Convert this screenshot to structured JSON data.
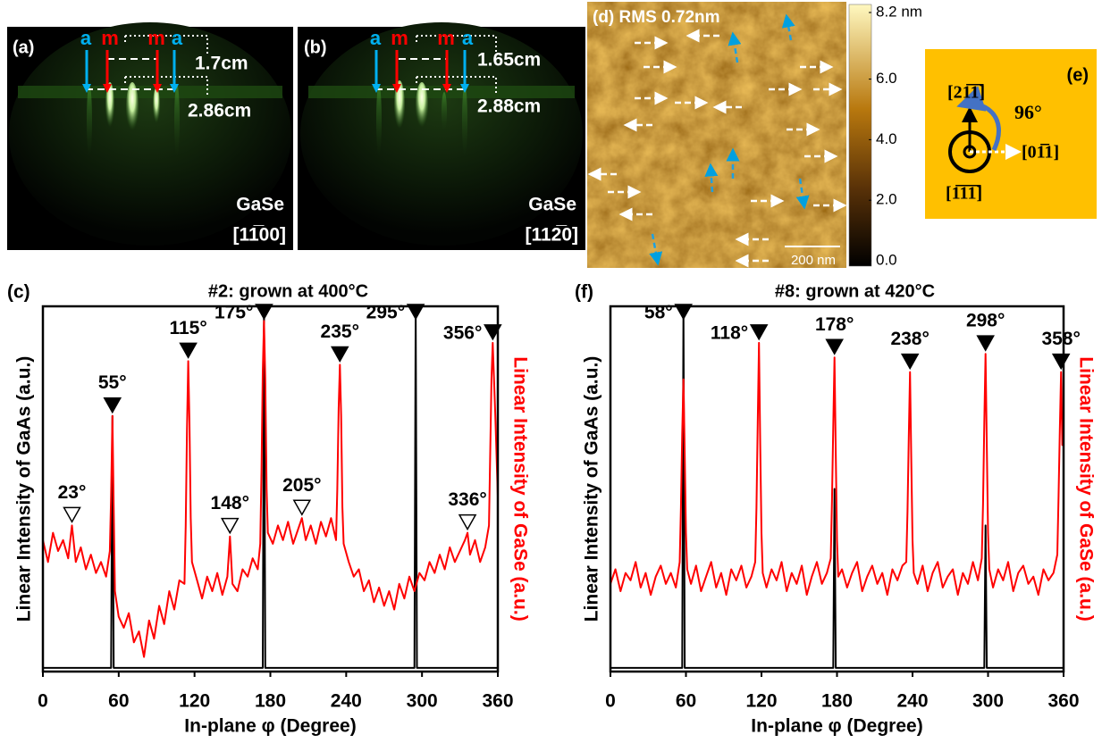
{
  "panel_a": {
    "label": "(a)",
    "streak_labels": [
      "a",
      "m",
      "m",
      "a"
    ],
    "streak_colors": [
      "#00b0f0",
      "#ff0000",
      "#ff0000",
      "#00b0f0"
    ],
    "distances": [
      "1.7cm",
      "2.86cm"
    ],
    "material": "GaSe",
    "zone_axis": "[11̅00]"
  },
  "panel_b": {
    "label": "(b)",
    "streak_labels": [
      "a",
      "m",
      "m",
      "a"
    ],
    "streak_colors": [
      "#00b0f0",
      "#ff0000",
      "#ff0000",
      "#00b0f0"
    ],
    "distances": [
      "1.65cm",
      "2.88cm"
    ],
    "material": "GaSe",
    "zone_axis": "[112̅0]"
  },
  "panel_d": {
    "label": "(d) RMS 0.72nm",
    "scale_bar": "200 nm",
    "colorbar": {
      "lim": [
        0,
        8.2
      ],
      "ticks": [
        {
          "value": 0,
          "label": "0.0"
        },
        {
          "value": 2,
          "label": "2.0"
        },
        {
          "value": 4,
          "label": "4.0"
        },
        {
          "value": 6,
          "label": "6.0"
        },
        {
          "value": 8.2,
          "label": "8.2 nm"
        }
      ]
    }
  },
  "panel_e": {
    "label": "(e)",
    "up": "[21̅1̅]",
    "right": "[01̅1]",
    "normal": "[1̅1̅1̅]",
    "angle": "96°"
  },
  "chart_data": [
    {
      "type": "line",
      "panel": "(c)",
      "title": "#2: grown at 400°C",
      "xlabel": "In-plane φ (Degree)",
      "ylabel": "Linear Intensity of GaAs (a.u.)",
      "y2label": "Linear Intensity of GaSe (a.u.)",
      "y2label_color": "#ff0000",
      "xlim": [
        0,
        360
      ],
      "xticks": [
        0,
        60,
        120,
        180,
        240,
        300,
        360
      ],
      "ylim": [
        0,
        1
      ],
      "series": [
        {
          "color": "#000000",
          "x": [
            0,
            54,
            55,
            56,
            174,
            175,
            176,
            294,
            295,
            296,
            360
          ],
          "values": [
            0.01,
            0.01,
            0.7,
            0.01,
            0.01,
            1,
            0.01,
            0.01,
            1,
            0.01,
            0.01
          ]
        },
        {
          "color": "#ff0000",
          "x": [
            0,
            4,
            8,
            12,
            16,
            20,
            23,
            26,
            30,
            34,
            38,
            42,
            46,
            50,
            53,
            54,
            55,
            56,
            57,
            60,
            64,
            68,
            72,
            76,
            80,
            84,
            88,
            92,
            96,
            100,
            104,
            108,
            112,
            113,
            114,
            115,
            116,
            117,
            118,
            122,
            126,
            130,
            134,
            138,
            142,
            146,
            148,
            150,
            154,
            158,
            162,
            166,
            170,
            172,
            173,
            174,
            175,
            176,
            177,
            178,
            182,
            186,
            190,
            194,
            198,
            202,
            205,
            208,
            212,
            216,
            220,
            224,
            228,
            232,
            233,
            234,
            235,
            236,
            237,
            238,
            242,
            246,
            250,
            254,
            258,
            262,
            266,
            270,
            274,
            278,
            282,
            286,
            290,
            294,
            298,
            302,
            306,
            310,
            314,
            318,
            322,
            326,
            330,
            334,
            336,
            338,
            342,
            346,
            350,
            353,
            354,
            355,
            356,
            358,
            360
          ],
          "values": [
            0.36,
            0.3,
            0.38,
            0.33,
            0.36,
            0.31,
            0.4,
            0.3,
            0.34,
            0.28,
            0.32,
            0.27,
            0.3,
            0.26,
            0.33,
            0.48,
            0.7,
            0.45,
            0.22,
            0.15,
            0.12,
            0.16,
            0.08,
            0.11,
            0.04,
            0.14,
            0.09,
            0.18,
            0.13,
            0.22,
            0.17,
            0.25,
            0.24,
            0.4,
            0.66,
            0.85,
            0.68,
            0.42,
            0.3,
            0.25,
            0.2,
            0.26,
            0.22,
            0.27,
            0.21,
            0.26,
            0.37,
            0.24,
            0.22,
            0.28,
            0.26,
            0.31,
            0.28,
            0.35,
            0.55,
            0.82,
            0.96,
            0.8,
            0.5,
            0.38,
            0.35,
            0.4,
            0.36,
            0.41,
            0.35,
            0.39,
            0.42,
            0.36,
            0.4,
            0.35,
            0.41,
            0.37,
            0.42,
            0.36,
            0.5,
            0.72,
            0.84,
            0.7,
            0.45,
            0.35,
            0.3,
            0.26,
            0.28,
            0.22,
            0.25,
            0.19,
            0.23,
            0.18,
            0.22,
            0.17,
            0.24,
            0.2,
            0.26,
            0.22,
            0.27,
            0.25,
            0.3,
            0.27,
            0.32,
            0.28,
            0.34,
            0.3,
            0.33,
            0.36,
            0.38,
            0.32,
            0.36,
            0.3,
            0.34,
            0.4,
            0.6,
            0.8,
            0.9,
            0.7,
            0.48
          ]
        }
      ],
      "markers": [
        {
          "value": 23,
          "label": "23°",
          "filled": false
        },
        {
          "value": 55,
          "label": "55°",
          "filled": true
        },
        {
          "value": 115,
          "label": "115°",
          "filled": true
        },
        {
          "value": 148,
          "label": "148°",
          "filled": false
        },
        {
          "value": 175,
          "label": "175°",
          "filled": true
        },
        {
          "value": 205,
          "label": "205°",
          "filled": false
        },
        {
          "value": 235,
          "label": "235°",
          "filled": true
        },
        {
          "value": 295,
          "label": "295°",
          "filled": true
        },
        {
          "value": 336,
          "label": "336°",
          "filled": false
        },
        {
          "value": 356,
          "label": "356°",
          "filled": true
        }
      ]
    },
    {
      "type": "line",
      "panel": "(f)",
      "title": "#8: grown at 420°C",
      "xlabel": "In-plane φ (Degree)",
      "ylabel": "Linear Intensity of GaAs (a.u.)",
      "y2label": "Linear Intensity of GaSe (a.u.)",
      "y2label_color": "#ff0000",
      "xlim": [
        0,
        360
      ],
      "xticks": [
        0,
        60,
        120,
        180,
        240,
        300,
        360
      ],
      "ylim": [
        0,
        1
      ],
      "series": [
        {
          "color": "#000000",
          "x": [
            0,
            57,
            58,
            59,
            177,
            178,
            179,
            297,
            298,
            299,
            360
          ],
          "values": [
            0.01,
            0.01,
            1,
            0.01,
            0.01,
            0.5,
            0.01,
            0.01,
            0.4,
            0.01,
            0.01
          ]
        },
        {
          "color": "#ff0000",
          "x": [
            0,
            4,
            8,
            12,
            16,
            20,
            24,
            28,
            32,
            36,
            40,
            44,
            48,
            52,
            55,
            56,
            57,
            58,
            59,
            60,
            61,
            64,
            68,
            72,
            76,
            80,
            84,
            88,
            92,
            96,
            100,
            104,
            108,
            112,
            115,
            116,
            117,
            118,
            119,
            120,
            121,
            124,
            128,
            132,
            136,
            140,
            144,
            148,
            152,
            156,
            160,
            164,
            168,
            172,
            175,
            176,
            177,
            178,
            179,
            180,
            181,
            184,
            188,
            192,
            196,
            200,
            204,
            208,
            212,
            216,
            220,
            224,
            228,
            232,
            235,
            236,
            237,
            238,
            239,
            240,
            241,
            244,
            248,
            252,
            256,
            260,
            264,
            268,
            272,
            276,
            280,
            284,
            288,
            292,
            295,
            296,
            297,
            298,
            299,
            300,
            301,
            304,
            308,
            312,
            316,
            320,
            324,
            328,
            332,
            336,
            340,
            344,
            348,
            352,
            355,
            356,
            357,
            358,
            359,
            360
          ],
          "values": [
            0.24,
            0.28,
            0.22,
            0.27,
            0.25,
            0.3,
            0.23,
            0.27,
            0.21,
            0.26,
            0.29,
            0.24,
            0.27,
            0.23,
            0.3,
            0.45,
            0.65,
            0.8,
            0.6,
            0.38,
            0.28,
            0.24,
            0.29,
            0.22,
            0.26,
            0.3,
            0.23,
            0.27,
            0.21,
            0.28,
            0.25,
            0.29,
            0.23,
            0.26,
            0.3,
            0.45,
            0.68,
            0.9,
            0.62,
            0.38,
            0.27,
            0.23,
            0.28,
            0.25,
            0.3,
            0.22,
            0.27,
            0.24,
            0.29,
            0.21,
            0.26,
            0.3,
            0.24,
            0.27,
            0.31,
            0.47,
            0.67,
            0.86,
            0.6,
            0.36,
            0.26,
            0.28,
            0.23,
            0.27,
            0.3,
            0.22,
            0.26,
            0.29,
            0.24,
            0.27,
            0.21,
            0.28,
            0.25,
            0.29,
            0.3,
            0.44,
            0.64,
            0.82,
            0.58,
            0.36,
            0.27,
            0.24,
            0.29,
            0.22,
            0.27,
            0.3,
            0.23,
            0.26,
            0.28,
            0.21,
            0.27,
            0.24,
            0.3,
            0.25,
            0.31,
            0.46,
            0.68,
            0.87,
            0.62,
            0.38,
            0.28,
            0.23,
            0.28,
            0.25,
            0.3,
            0.22,
            0.27,
            0.29,
            0.24,
            0.26,
            0.21,
            0.28,
            0.25,
            0.27,
            0.32,
            0.48,
            0.66,
            0.82,
            0.62,
            0.66
          ]
        }
      ],
      "markers": [
        {
          "value": 58,
          "label": "58°",
          "filled": true
        },
        {
          "value": 118,
          "label": "118°",
          "filled": true
        },
        {
          "value": 178,
          "label": "178°",
          "filled": true
        },
        {
          "value": 238,
          "label": "238°",
          "filled": true
        },
        {
          "value": 298,
          "label": "298°",
          "filled": true
        },
        {
          "value": 358,
          "label": "358°",
          "filled": true
        }
      ]
    }
  ]
}
